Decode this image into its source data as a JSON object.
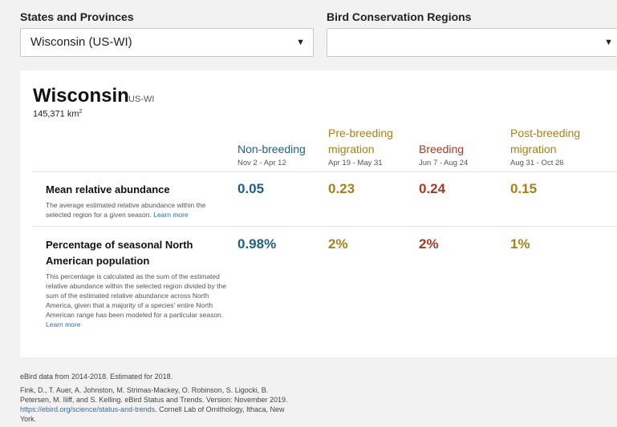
{
  "filters": {
    "states_label": "States and Provinces",
    "states_value": "Wisconsin (US-WI)",
    "bcr_label": "Bird Conservation Regions",
    "bcr_value": ""
  },
  "region": {
    "name": "Wisconsin",
    "code": "US-WI",
    "area_number": "145,371 km",
    "area_exp": "2"
  },
  "seasons": [
    {
      "name_line1": "Non-breeding",
      "name_line2": "",
      "dates": "Nov 2 - Apr 12",
      "color": "#1f5f86"
    },
    {
      "name_line1": "Pre-breeding",
      "name_line2": "migration",
      "dates": "Apr 19 - May 31",
      "color": "#a8801a"
    },
    {
      "name_line1": "Breeding",
      "name_line2": "",
      "dates": "Jun 7 - Aug 24",
      "color": "#a83a25"
    },
    {
      "name_line1": "Post-breeding",
      "name_line2": "migration",
      "dates": "Aug 31 - Oct 26",
      "color": "#a8801a"
    }
  ],
  "rows": {
    "abundance": {
      "title": "Mean relative abundance",
      "desc": "The average estimated relative abundance within the selected region for a given season.",
      "link": "Learn more",
      "values": [
        "0.05",
        "0.23",
        "0.24",
        "0.15"
      ]
    },
    "percentage": {
      "title_line1": "Percentage of seasonal North",
      "title_line2": "American population",
      "desc": "This percentage is calculated as the sum of the estimated relative abundance within the selected region divided by the sum of the estimated relative abundance across North America, given that a majority of a species' entire North American range has been modeled for a particular season.",
      "link": "Learn more",
      "values": [
        "0.98%",
        "2%",
        "2%",
        "1%"
      ]
    }
  },
  "footer": {
    "data_note": "eBird data from 2014-2018. Estimated for 2018.",
    "citation_1": "Fink, D., T. Auer, A. Johnston, M. Strimas-Mackey, O. Robinson, S. Ligocki, B.",
    "citation_2": "Petersen, M. Iliff, and S. Kelling. eBird Status and Trends. Version: November 2019.",
    "citation_url": "https://ebird.org/science/status-and-trends",
    "citation_3": ". Cornell Lab of Ornithology, Ithaca, New",
    "citation_4": "York."
  }
}
